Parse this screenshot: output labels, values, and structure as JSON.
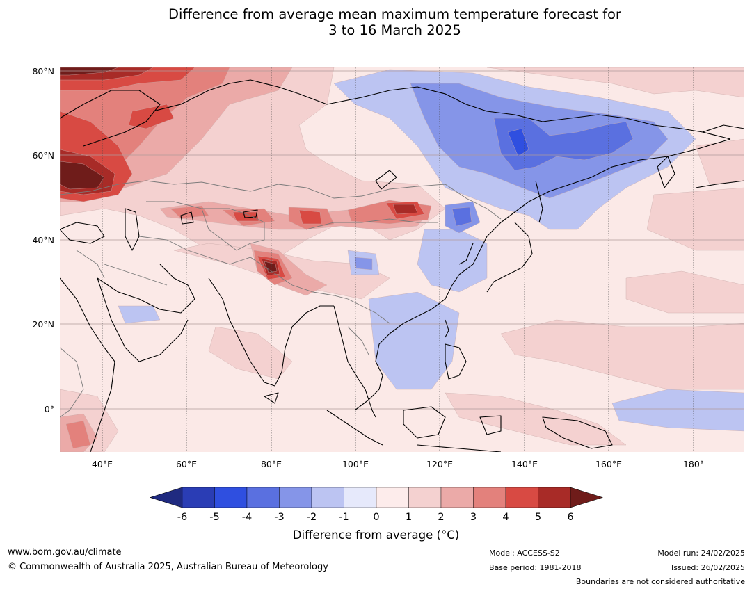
{
  "title": {
    "line1": "Difference from average mean maximum temperature forecast for",
    "line2": "3 to 16 March 2025"
  },
  "map": {
    "lat_labels": [
      "80°N",
      "60°N",
      "40°N",
      "20°N",
      "0°"
    ],
    "lon_labels": [
      "40°E",
      "60°E",
      "80°E",
      "100°E",
      "120°E",
      "140°E",
      "160°E",
      "180°"
    ],
    "colors": {
      "ocean_bg": "#fbe9e7",
      "gridline": "#b09a9a",
      "coast": "#000000",
      "border": "#7a7a7a"
    }
  },
  "colorbar": {
    "label": "Difference from average (°C)",
    "ticks": [
      "-6",
      "-5",
      "-4",
      "-3",
      "-2",
      "-1",
      "0",
      "1",
      "2",
      "3",
      "4",
      "5",
      "6"
    ],
    "colors": [
      "#1f2a80",
      "#2a3db5",
      "#2f4fe0",
      "#5a70e0",
      "#8595e8",
      "#bcc4f2",
      "#e6e9fb",
      "#fdeceb",
      "#f4d1d0",
      "#ebaaa8",
      "#e3817c",
      "#d84a43",
      "#a82b27",
      "#6f1c1a"
    ]
  },
  "footer": {
    "website": "www.bom.gov.au/climate",
    "copyright": "© Commonwealth of Australia 2025, Australian Bureau of Meteorology",
    "model": "Model: ACCESS-S2",
    "base_period": "Base period: 1981-2018",
    "model_run": "Model run: 24/02/2025",
    "issued": "Issued: 26/02/2025",
    "boundaries": "Boundaries are not considered authoritative"
  }
}
